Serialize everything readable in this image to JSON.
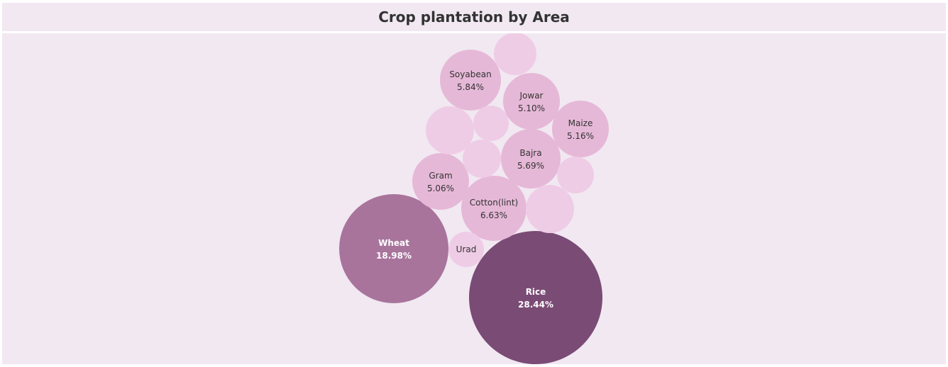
{
  "chart_data": {
    "type": "bubble",
    "title": "Crop plantation by Area",
    "bubbles": [
      {
        "name": "Rice",
        "value": "28.44%",
        "fill": "#7a4b75",
        "text": "#ffffff",
        "bold": true
      },
      {
        "name": "Wheat",
        "value": "18.98%",
        "fill": "#a8749c",
        "text": "#ffffff",
        "bold": true
      },
      {
        "name": "Cotton(lint)",
        "value": "6.63%",
        "fill": "#e6b8d7",
        "text": "#333333",
        "bold": false
      },
      {
        "name": "Soyabean",
        "value": "5.84%",
        "fill": "#e6b8d7",
        "text": "#333333",
        "bold": false
      },
      {
        "name": "Bajra",
        "value": "5.69%",
        "fill": "#e6b8d7",
        "text": "#333333",
        "bold": false
      },
      {
        "name": "Maize",
        "value": "5.16%",
        "fill": "#e6b8d7",
        "text": "#333333",
        "bold": false
      },
      {
        "name": "Jowar",
        "value": "5.10%",
        "fill": "#e6b8d7",
        "text": "#333333",
        "bold": false
      },
      {
        "name": "Gram",
        "value": "5.06%",
        "fill": "#e6b8d7",
        "text": "#333333",
        "bold": false
      },
      {
        "name": "Urad",
        "value": "",
        "fill": "#efcce6",
        "text": "#333333",
        "bold": false
      },
      {
        "name": "",
        "value": "",
        "fill": "#efcce6",
        "text": "#333333",
        "bold": false
      },
      {
        "name": "",
        "value": "",
        "fill": "#efcce6",
        "text": "#333333",
        "bold": false
      },
      {
        "name": "",
        "value": "",
        "fill": "#efcce6",
        "text": "#333333",
        "bold": false
      },
      {
        "name": "",
        "value": "",
        "fill": "#efcce6",
        "text": "#333333",
        "bold": false
      },
      {
        "name": "",
        "value": "",
        "fill": "#efcce6",
        "text": "#333333",
        "bold": false
      },
      {
        "name": "",
        "value": "",
        "fill": "#efcce6",
        "text": "#333333",
        "bold": false
      }
    ]
  }
}
